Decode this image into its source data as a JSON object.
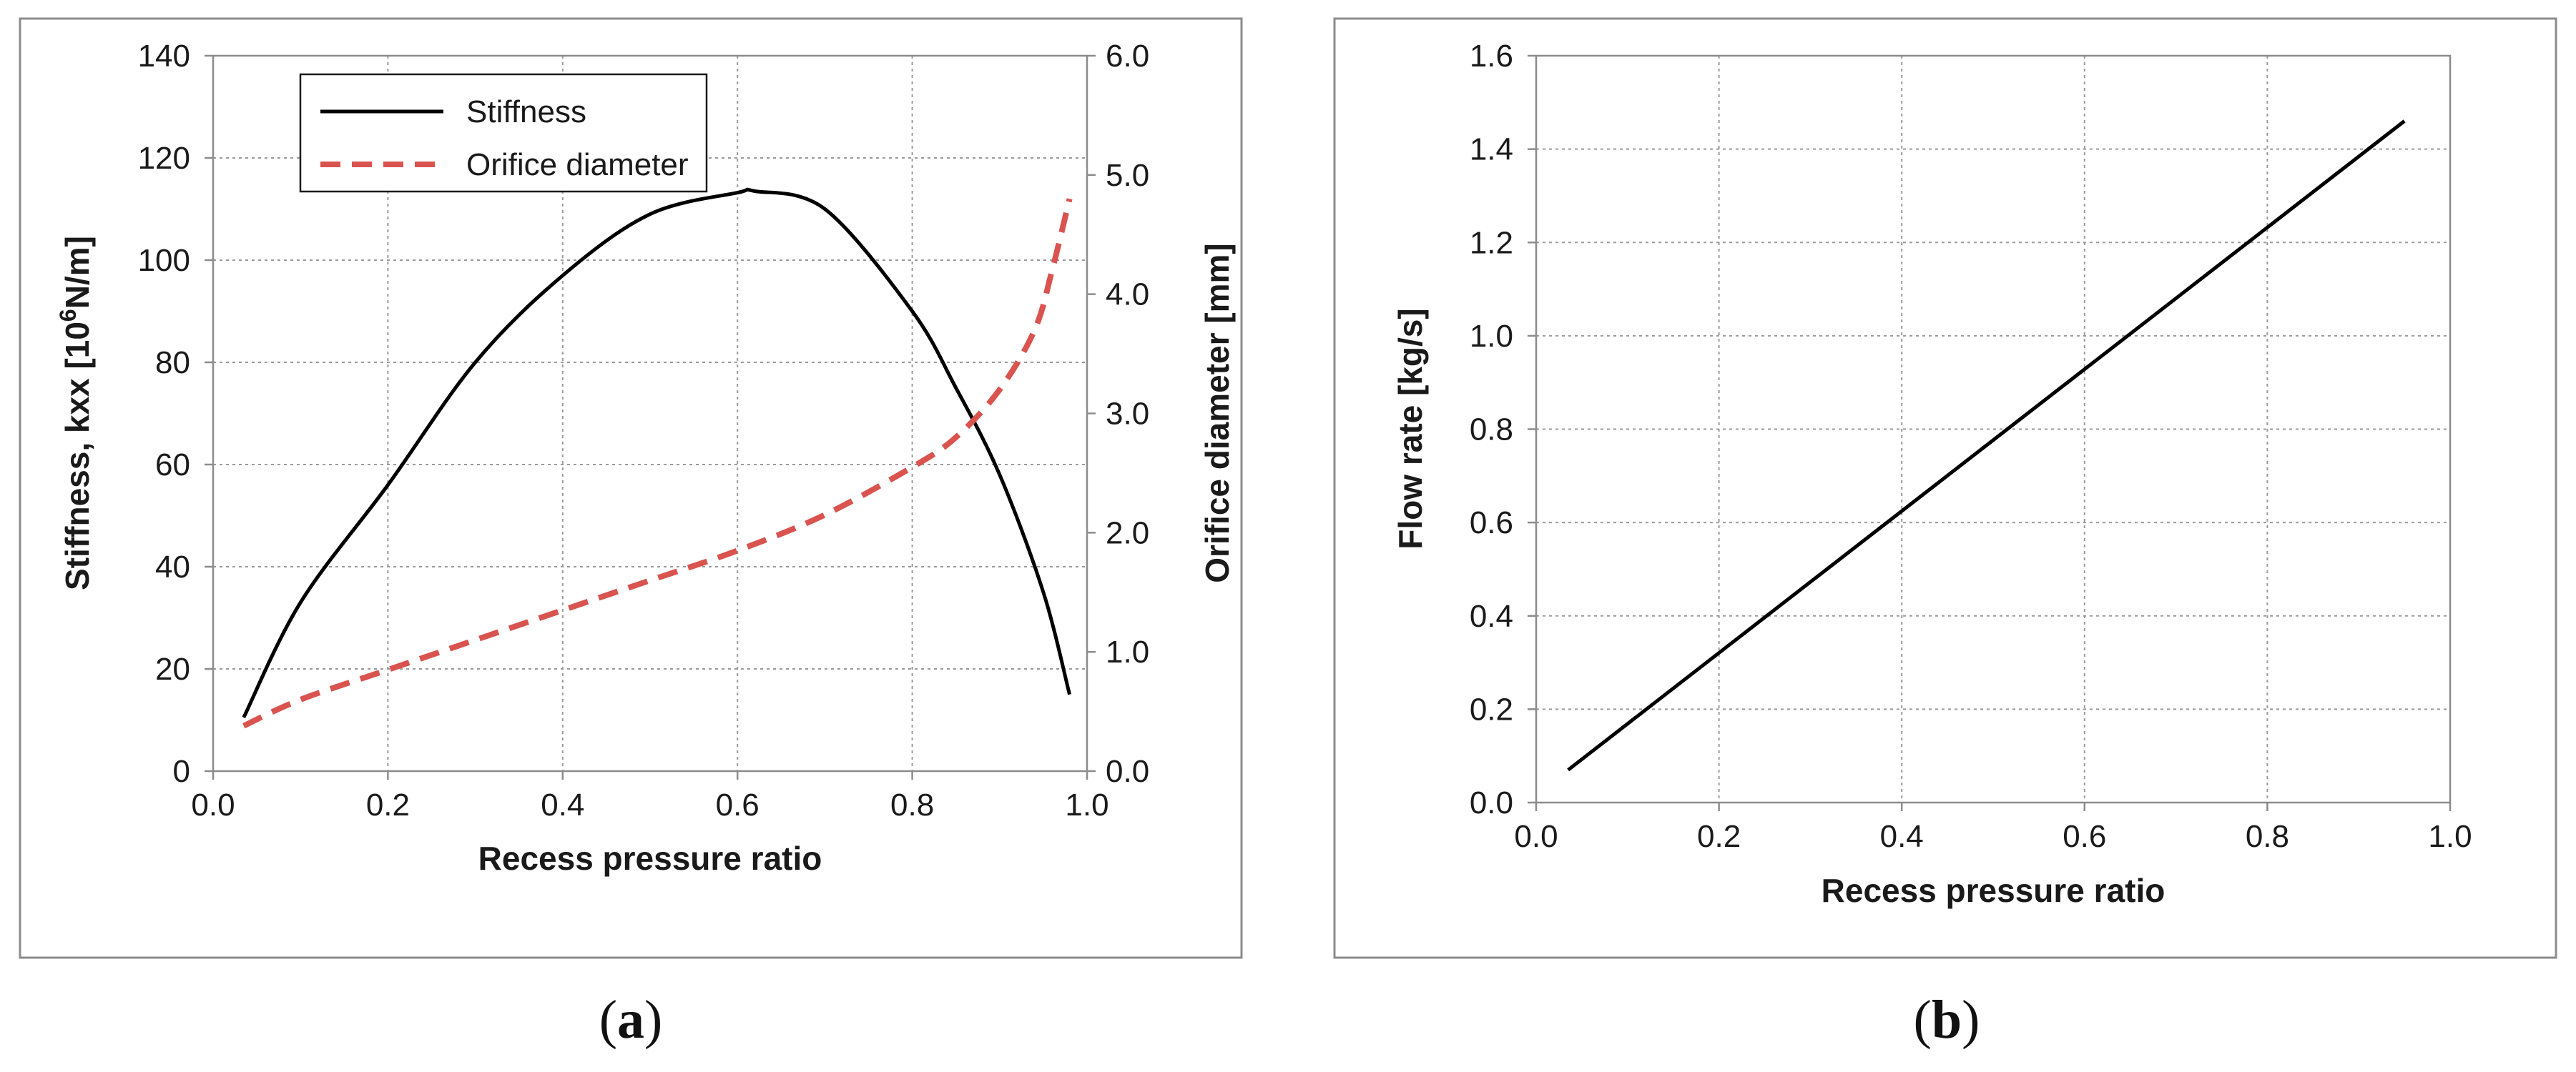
{
  "chart_data": [
    {
      "type": "line",
      "panel_label": "a",
      "xlabel": "Recess pressure  ratio",
      "ylabel_left": "Stiffness,  kxx [10",
      "ylabel_left_sup": "6",
      "ylabel_left_tail": "N/m]",
      "ylabel_right": "Orifice diameter [mm]",
      "xlim": [
        0.0,
        1.0
      ],
      "ylim_left": [
        0,
        140
      ],
      "ylim_right": [
        0.0,
        6.0
      ],
      "x_ticks": [
        "0.0",
        "0.2",
        "0.4",
        "0.6",
        "0.8",
        "1.0"
      ],
      "y_ticks_left": [
        "0",
        "20",
        "40",
        "60",
        "80",
        "100",
        "120",
        "140"
      ],
      "y_ticks_right": [
        "0.0",
        "1.0",
        "2.0",
        "3.0",
        "4.0",
        "5.0",
        "6.0"
      ],
      "legend_position": "top-left",
      "series": [
        {
          "name": "Stiffness",
          "axis": "left",
          "color": "#000000",
          "style": "solid",
          "x": [
            0.035,
            0.1,
            0.2,
            0.3,
            0.4,
            0.5,
            0.6,
            0.62,
            0.7,
            0.8,
            0.85,
            0.9,
            0.95,
            0.98
          ],
          "y": [
            10.5,
            33,
            56,
            80,
            97,
            109,
            113.2,
            113.5,
            110,
            90,
            75,
            58,
            35,
            15
          ]
        },
        {
          "name": "Orifice diameter",
          "axis": "right",
          "color": "#d9534f",
          "style": "dashed",
          "x": [
            0.035,
            0.1,
            0.2,
            0.3,
            0.4,
            0.5,
            0.6,
            0.7,
            0.8,
            0.85,
            0.9,
            0.94,
            0.96,
            0.98
          ],
          "y": [
            0.38,
            0.6,
            0.85,
            1.1,
            1.35,
            1.6,
            1.85,
            2.15,
            2.55,
            2.8,
            3.2,
            3.7,
            4.2,
            4.8
          ]
        }
      ]
    },
    {
      "type": "line",
      "panel_label": "b",
      "xlabel": "Recess pressure  ratio",
      "ylabel": "Flow rate  [kg/s]",
      "xlim": [
        0.0,
        1.0
      ],
      "ylim": [
        0.0,
        1.6
      ],
      "x_ticks": [
        "0.0",
        "0.2",
        "0.4",
        "0.6",
        "0.8",
        "1.0"
      ],
      "y_ticks": [
        "0.0",
        "0.2",
        "0.4",
        "0.6",
        "0.8",
        "1.0",
        "1.2",
        "1.4",
        "1.6"
      ],
      "series": [
        {
          "name": "Flow rate",
          "color": "#000000",
          "style": "solid",
          "x": [
            0.035,
            0.95
          ],
          "y": [
            0.07,
            1.46
          ]
        }
      ]
    }
  ]
}
